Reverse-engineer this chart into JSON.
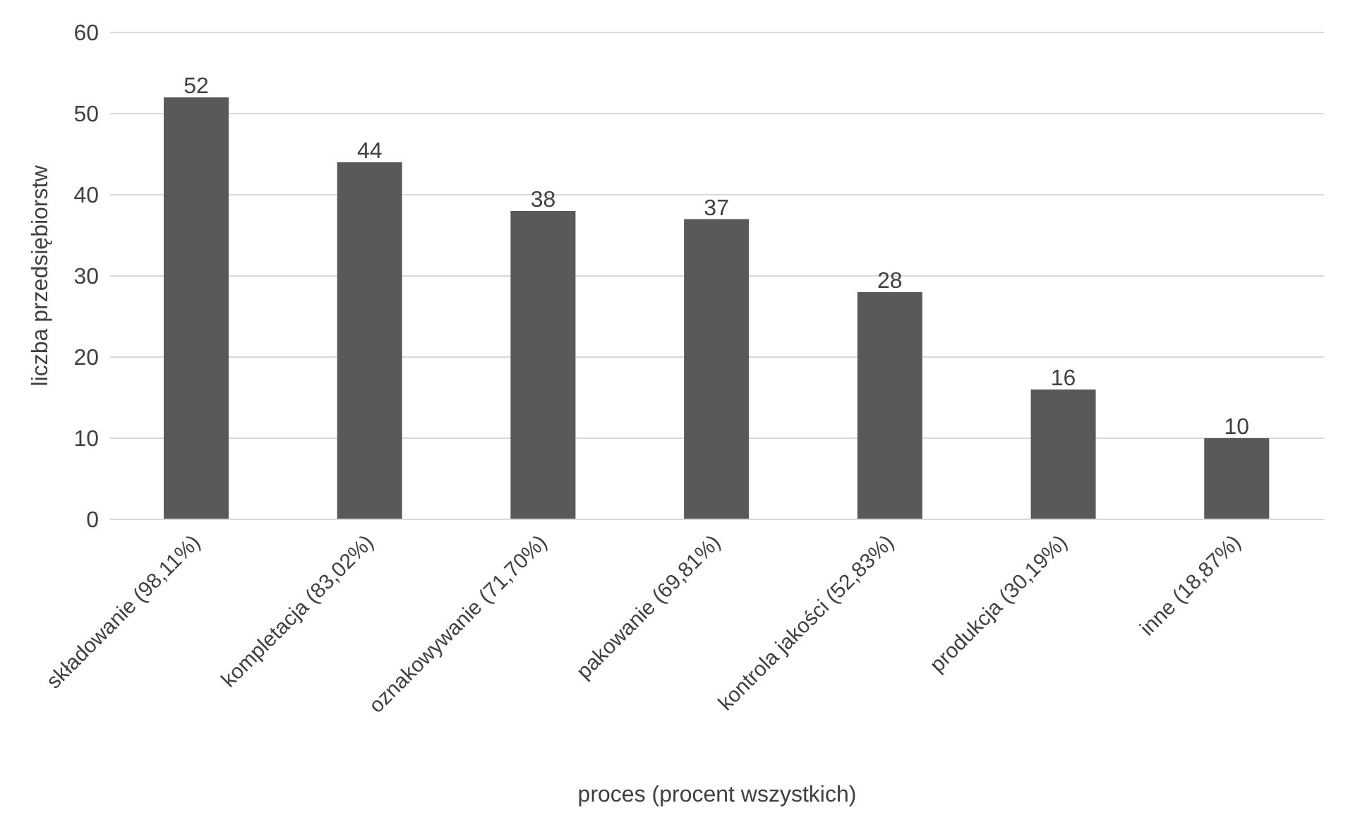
{
  "chart_data": {
    "type": "bar",
    "xlabel": "proces (procent wszystkich)",
    "ylabel": "liczba przedsiębiorstw",
    "categories": [
      "składowanie (98,11%)",
      "kompletacja (83,02%)",
      "oznakowywanie (71,70%)",
      "pakowanie (69,81%)",
      "kontrola jakości (52,83%)",
      "produkcja (30,19%)",
      "inne (18,87%)"
    ],
    "values": [
      52,
      44,
      38,
      37,
      28,
      16,
      10
    ],
    "color": "#595959",
    "ylim": [
      0,
      60
    ],
    "yticks": [
      0,
      10,
      20,
      30,
      40,
      50,
      60
    ],
    "grid": "y",
    "data_labels": true
  }
}
